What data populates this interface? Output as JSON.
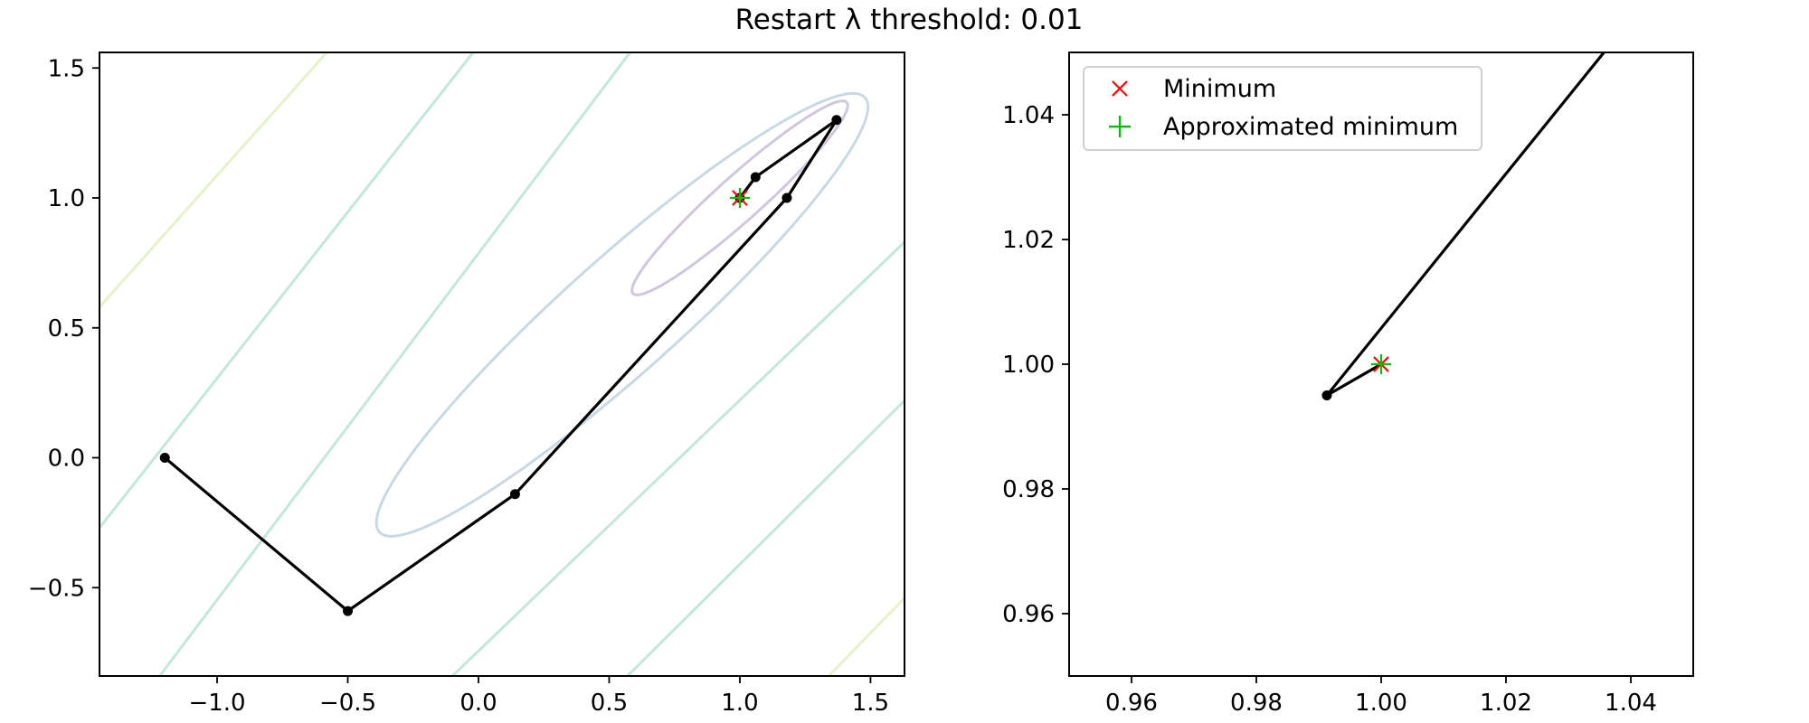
{
  "figure": {
    "suptitle": "Restart λ threshold: 0.01"
  },
  "chart_data": [
    {
      "type": "line",
      "panel": "left",
      "xlim": [
        -1.45,
        1.63
      ],
      "ylim": [
        -0.84,
        1.56
      ],
      "xticks": [
        -1.0,
        -0.5,
        0.0,
        0.5,
        1.0,
        1.5
      ],
      "xtick_labels": [
        "−1.0",
        "−0.5",
        "0.0",
        "0.5",
        "1.0",
        "1.5"
      ],
      "yticks": [
        -0.5,
        0.0,
        0.5,
        1.0,
        1.5
      ],
      "ytick_labels": [
        "−0.5",
        "0.0",
        "0.5",
        "1.0",
        "1.5"
      ],
      "grid": false,
      "contours": [
        {
          "level": "inner",
          "color": "#cfc7de",
          "center": [
            1.0,
            1.0
          ],
          "semi_major": 0.55,
          "semi_minor": 0.085,
          "angle_deg": 42
        },
        {
          "level": "mid",
          "color": "#c9d9e4",
          "center": [
            0.55,
            0.55
          ],
          "semi_major": 1.25,
          "semi_minor": 0.22,
          "angle_deg": 42
        }
      ],
      "contour_lines": [
        {
          "color": "#e4f3c9",
          "points": [
            [
              -1.45,
              0.58
            ],
            [
              -0.58,
              1.56
            ]
          ]
        },
        {
          "color": "#c3e6dd",
          "points": [
            [
              -1.45,
              -0.27
            ],
            [
              -0.02,
              1.56
            ]
          ]
        },
        {
          "color": "#c3e6dd",
          "points": [
            [
              -1.22,
              -0.84
            ],
            [
              0.58,
              1.56
            ]
          ]
        },
        {
          "color": "#c3e6dd",
          "points": [
            [
              -0.1,
              -0.84
            ],
            [
              1.63,
              0.83
            ]
          ]
        },
        {
          "color": "#c3e6dd",
          "points": [
            [
              0.57,
              -0.84
            ],
            [
              1.63,
              0.22
            ]
          ]
        },
        {
          "color": "#e4f3c9",
          "points": [
            [
              1.34,
              -0.84
            ],
            [
              1.63,
              -0.54
            ]
          ]
        }
      ],
      "path": {
        "x": [
          -1.2,
          -0.5,
          0.14,
          1.18,
          1.37,
          1.06,
          1.0
        ],
        "y": [
          0.0,
          -0.59,
          -0.14,
          1.0,
          1.3,
          1.08,
          1.0
        ]
      },
      "minimum": {
        "x": 1.0,
        "y": 1.0
      },
      "approximated_minimum": {
        "x": 1.0,
        "y": 1.0
      }
    },
    {
      "type": "line",
      "panel": "right",
      "xlim": [
        0.95,
        1.05
      ],
      "ylim": [
        0.95,
        1.05
      ],
      "xticks": [
        0.96,
        0.98,
        1.0,
        1.02,
        1.04
      ],
      "xtick_labels": [
        "0.96",
        "0.98",
        "1.00",
        "1.02",
        "1.04"
      ],
      "yticks": [
        0.96,
        0.98,
        1.0,
        1.02,
        1.04
      ],
      "ytick_labels": [
        "0.96",
        "0.98",
        "1.00",
        "1.02",
        "1.04"
      ],
      "grid": false,
      "path": {
        "x": [
          1.0357,
          0.9913,
          1.0
        ],
        "y": [
          1.05,
          0.995,
          1.0
        ]
      },
      "path_markers": [
        [
          0.9913,
          0.995
        ]
      ],
      "minimum": {
        "x": 1.0,
        "y": 1.0
      },
      "approximated_minimum": {
        "x": 1.0,
        "y": 1.0
      },
      "legend": {
        "placement": "top-left",
        "entries": [
          {
            "label": "Minimum",
            "marker": "x",
            "color": "#ff0000"
          },
          {
            "label": "Approximated minimum",
            "marker": "+",
            "color": "#00c000"
          }
        ]
      }
    }
  ]
}
